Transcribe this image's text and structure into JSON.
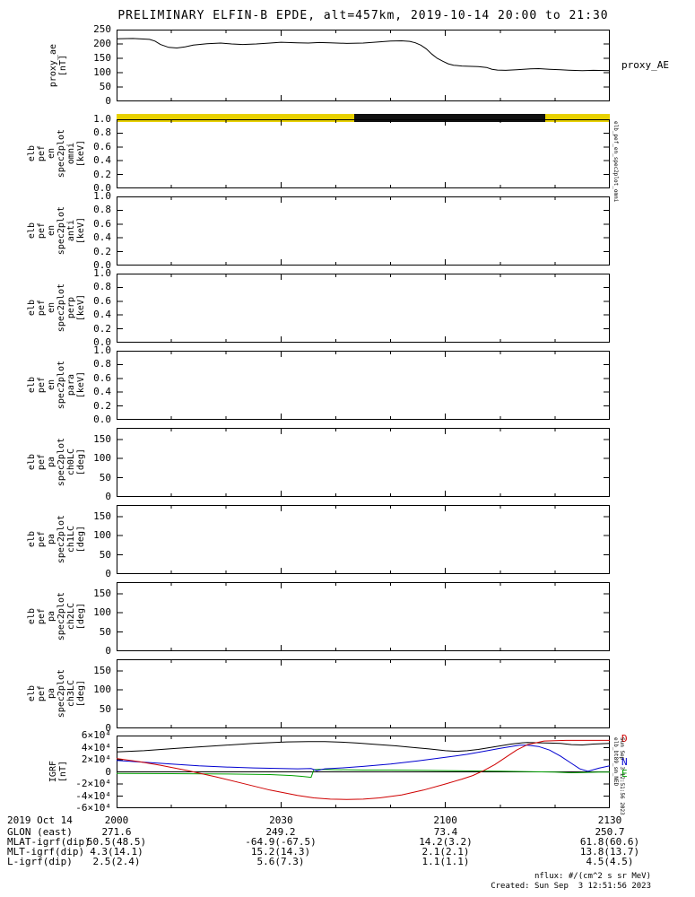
{
  "title": "PRELIMINARY ELFIN-B EPDE, alt=457km, 2019-10-14 20:00 to 21:30",
  "colors": {
    "line_black": "#000000",
    "line_red": "#cf0000",
    "line_blue": "#0000d0",
    "line_green": "#00a000",
    "bar_yellow": "#e8d100",
    "bar_black": "#111111"
  },
  "x_axis": {
    "range_minutes": [
      0,
      90
    ],
    "minor_every_min": 10,
    "ticks": [
      {
        "min": 0,
        "label": "2000"
      },
      {
        "min": 30,
        "label": "2030"
      },
      {
        "min": 60,
        "label": "2100"
      },
      {
        "min": 90,
        "label": "2130"
      }
    ]
  },
  "footer": {
    "date_label": "2019 Oct 14",
    "rows": [
      {
        "label": "GLON (east)",
        "values": [
          "271.6",
          "249.2",
          "73.4",
          "250.7"
        ]
      },
      {
        "label": "MLAT-igrf(dip)",
        "values": [
          "50.5(48.5)",
          "-64.9(-67.5)",
          "14.2(3.2)",
          "61.8(60.6)"
        ]
      },
      {
        "label": "MLT-igrf(dip)",
        "values": [
          "4.3(14.1)",
          "15.2(14.3)",
          "2.1(2.1)",
          "13.8(13.7)"
        ]
      },
      {
        "label": "L-igrf(dip)",
        "values": [
          "2.5(2.4)",
          "5.6(7.3)",
          "1.1(1.1)",
          "4.5(4.5)"
        ]
      }
    ],
    "units_note": "nflux: #/(cm^2 s sr MeV)",
    "created": "Created: Sun Sep  3 12:51:56 2023"
  },
  "chart_data": [
    {
      "name": "proxy_ae",
      "type": "line",
      "ylabel_lines": [
        "proxy_ae",
        "[nT]"
      ],
      "ylim": [
        0,
        250
      ],
      "yticks": [
        {
          "v": 0,
          "label": "0"
        },
        {
          "v": 50,
          "label": "50"
        },
        {
          "v": 100,
          "label": "100"
        },
        {
          "v": 150,
          "label": "150"
        },
        {
          "v": 200,
          "label": "200"
        },
        {
          "v": 250,
          "label": "250"
        }
      ],
      "right_labels": [
        {
          "text": "proxy_AE",
          "color": "#000000"
        }
      ],
      "series": [
        {
          "name": "proxy_AE",
          "color": "#000000",
          "x": [
            0,
            3,
            6,
            7,
            8,
            9.5,
            11,
            12.5,
            14,
            16.5,
            19,
            21,
            23,
            25.5,
            28,
            30,
            33,
            35,
            37,
            39,
            42,
            45,
            47,
            50,
            52,
            53.5,
            54.5,
            55.5,
            56.5,
            57.5,
            58.5,
            59.5,
            60.5,
            61.5,
            63,
            66,
            67.5,
            68.5,
            69.5,
            71,
            73,
            75.5,
            77,
            79,
            81,
            83,
            85,
            87,
            90
          ],
          "y": [
            218,
            219,
            216,
            210,
            198,
            188,
            186,
            190,
            196,
            201,
            203,
            200,
            198,
            200,
            203,
            206,
            204,
            203,
            205,
            204,
            202,
            203,
            206,
            210,
            211,
            209,
            204,
            196,
            183,
            165,
            150,
            140,
            131,
            126,
            123,
            121,
            118,
            112,
            109,
            108,
            110,
            113,
            114,
            112,
            110,
            108,
            107,
            108,
            107
          ]
        }
      ]
    },
    {
      "name": "sun-eclipse-bar",
      "type": "segments",
      "segments": [
        {
          "x0": 0,
          "x1": 43.4,
          "color": "#e8d100"
        },
        {
          "x0": 43.4,
          "x1": 78.2,
          "color": "#111111"
        },
        {
          "x0": 78.2,
          "x1": 90,
          "color": "#e8d100"
        }
      ]
    },
    {
      "name": "en-spec-omni",
      "type": "empty",
      "ylabel_lines": [
        "elb",
        "pef",
        "en",
        "spec2plot",
        "omni",
        "[keV]"
      ],
      "ylim": [
        0,
        1
      ],
      "yticks": [
        {
          "v": 0,
          "label": "0.0"
        },
        {
          "v": 0.2,
          "label": "0.2"
        },
        {
          "v": 0.4,
          "label": "0.4"
        },
        {
          "v": 0.6,
          "label": "0.6"
        },
        {
          "v": 0.8,
          "label": "0.8"
        },
        {
          "v": 1.0,
          "label": "1.0"
        }
      ],
      "right_vertical_labels": [
        "elb_pef_en_spec2plot_omni"
      ]
    },
    {
      "name": "en-spec-anti",
      "type": "empty",
      "ylabel_lines": [
        "elb",
        "pef",
        "en",
        "spec2plot",
        "anti",
        "[keV]"
      ],
      "ylim": [
        0,
        1
      ],
      "yticks": [
        {
          "v": 0,
          "label": "0.0"
        },
        {
          "v": 0.2,
          "label": "0.2"
        },
        {
          "v": 0.4,
          "label": "0.4"
        },
        {
          "v": 0.6,
          "label": "0.6"
        },
        {
          "v": 0.8,
          "label": "0.8"
        },
        {
          "v": 1.0,
          "label": "1.0"
        }
      ]
    },
    {
      "name": "en-spec-perp",
      "type": "empty",
      "ylabel_lines": [
        "elb",
        "pef",
        "en",
        "spec2plot",
        "perp",
        "[keV]"
      ],
      "ylim": [
        0,
        1
      ],
      "yticks": [
        {
          "v": 0,
          "label": "0.0"
        },
        {
          "v": 0.2,
          "label": "0.2"
        },
        {
          "v": 0.4,
          "label": "0.4"
        },
        {
          "v": 0.6,
          "label": "0.6"
        },
        {
          "v": 0.8,
          "label": "0.8"
        },
        {
          "v": 1.0,
          "label": "1.0"
        }
      ]
    },
    {
      "name": "en-spec-para",
      "type": "empty",
      "ylabel_lines": [
        "elb",
        "pef",
        "en",
        "spec2plot",
        "para",
        "[keV]"
      ],
      "ylim": [
        0,
        1
      ],
      "yticks": [
        {
          "v": 0,
          "label": "0.0"
        },
        {
          "v": 0.2,
          "label": "0.2"
        },
        {
          "v": 0.4,
          "label": "0.4"
        },
        {
          "v": 0.6,
          "label": "0.6"
        },
        {
          "v": 0.8,
          "label": "0.8"
        },
        {
          "v": 1.0,
          "label": "1.0"
        }
      ]
    },
    {
      "name": "pa-spec-ch0LC",
      "type": "empty",
      "ylabel_lines": [
        "elb",
        "pef",
        "pa",
        "spec2plot",
        "ch0LC",
        "[deg]"
      ],
      "ylim": [
        0,
        180
      ],
      "yticks": [
        {
          "v": 0,
          "label": "0"
        },
        {
          "v": 50,
          "label": "50"
        },
        {
          "v": 100,
          "label": "100"
        },
        {
          "v": 150,
          "label": "150"
        }
      ]
    },
    {
      "name": "pa-spec-ch1LC",
      "type": "empty",
      "ylabel_lines": [
        "elb",
        "pef",
        "pa",
        "spec2plot",
        "ch1LC",
        "[deg]"
      ],
      "ylim": [
        0,
        180
      ],
      "yticks": [
        {
          "v": 0,
          "label": "0"
        },
        {
          "v": 50,
          "label": "50"
        },
        {
          "v": 100,
          "label": "100"
        },
        {
          "v": 150,
          "label": "150"
        }
      ]
    },
    {
      "name": "pa-spec-ch2LC",
      "type": "empty",
      "ylabel_lines": [
        "elb",
        "pef",
        "pa",
        "spec2plot",
        "ch2LC",
        "[deg]"
      ],
      "ylim": [
        0,
        180
      ],
      "yticks": [
        {
          "v": 0,
          "label": "0"
        },
        {
          "v": 50,
          "label": "50"
        },
        {
          "v": 100,
          "label": "100"
        },
        {
          "v": 150,
          "label": "150"
        }
      ]
    },
    {
      "name": "pa-spec-ch3LC",
      "type": "empty",
      "ylabel_lines": [
        "elb",
        "pef",
        "pa",
        "spec2plot",
        "ch3LC",
        "[deg]"
      ],
      "ylim": [
        0,
        180
      ],
      "yticks": [
        {
          "v": 0,
          "label": "0"
        },
        {
          "v": 50,
          "label": "50"
        },
        {
          "v": 100,
          "label": "100"
        },
        {
          "v": 150,
          "label": "150"
        }
      ]
    },
    {
      "name": "igrf",
      "type": "line",
      "ylabel_lines": [
        "IGRF",
        "[nT]"
      ],
      "ylim": [
        -60000,
        60000
      ],
      "zero_line": true,
      "yticks": [
        {
          "v": -60000,
          "label": "-6×10⁴"
        },
        {
          "v": -40000,
          "label": "-4×10⁴"
        },
        {
          "v": -20000,
          "label": "-2×10⁴"
        },
        {
          "v": 0,
          "label": "0"
        },
        {
          "v": 20000,
          "label": "2×10⁴"
        },
        {
          "v": 40000,
          "label": "4×10⁴"
        },
        {
          "v": 60000,
          "label": "6×10⁴"
        }
      ],
      "right_labels": [
        {
          "text": "D",
          "color": "#cf0000",
          "v": 54000
        },
        {
          "text": "N",
          "color": "#0000d0",
          "v": 16000
        },
        {
          "text": "E",
          "color": "#00a000",
          "v": -4000
        }
      ],
      "right_vertical_labels": [
        "elb_bt89_sm_NED",
        "Sun Sep  3 12:51:56 2023"
      ],
      "series": [
        {
          "name": "B-black",
          "color": "#000000",
          "x": [
            0,
            5,
            11,
            18,
            25,
            31,
            35,
            38,
            41,
            44,
            47,
            51,
            54,
            57,
            60,
            62,
            64,
            66,
            68,
            70,
            72,
            74,
            75,
            77,
            79,
            81,
            83,
            85,
            87,
            90
          ],
          "y": [
            33000,
            35000,
            39000,
            43000,
            47000,
            49500,
            50000,
            50000,
            49000,
            47500,
            45500,
            43000,
            40500,
            38000,
            35000,
            34000,
            35000,
            37000,
            40000,
            43000,
            46000,
            48000,
            48500,
            48000,
            47500,
            47000,
            45000,
            44500,
            46000,
            47000
          ]
        },
        {
          "name": "E-green",
          "color": "#00a000",
          "x": [
            0,
            10,
            20,
            28,
            32,
            34,
            35.5,
            36,
            37,
            40,
            45,
            50,
            55,
            60,
            65,
            70,
            75,
            80,
            83,
            85,
            88,
            90
          ],
          "y": [
            -2500,
            -3000,
            -3500,
            -4500,
            -6000,
            -7500,
            -9000,
            3500,
            4000,
            3500,
            3000,
            3000,
            2500,
            2000,
            1500,
            1000,
            500,
            -500,
            -1500,
            -1000,
            -500,
            -500
          ]
        },
        {
          "name": "N-blue",
          "color": "#0000d0",
          "x": [
            0,
            5,
            10,
            15,
            20,
            25,
            30,
            33,
            35.5,
            36.5,
            38,
            41,
            45,
            50,
            55,
            60,
            64,
            67,
            70,
            72,
            73.5,
            75,
            77,
            79,
            81,
            83,
            84.5,
            86,
            88,
            90
          ],
          "y": [
            19000,
            16000,
            13000,
            10000,
            8000,
            6500,
            5500,
            5000,
            5500,
            2000,
            5000,
            6500,
            9000,
            13000,
            18000,
            24000,
            29000,
            34000,
            39000,
            42000,
            44000,
            44000,
            42000,
            36000,
            26000,
            14000,
            5000,
            1000,
            6000,
            10000
          ]
        },
        {
          "name": "D-red",
          "color": "#cf0000",
          "x": [
            0,
            4,
            8,
            13,
            18,
            23,
            28,
            33,
            36,
            39,
            42,
            45,
            48,
            52,
            56,
            60,
            63,
            65,
            67,
            69,
            71,
            73,
            75,
            78,
            82,
            86,
            90
          ],
          "y": [
            22000,
            17000,
            11000,
            2000,
            -8000,
            -19000,
            -30000,
            -39000,
            -43000,
            -45000,
            -45500,
            -45000,
            -43000,
            -38000,
            -30000,
            -20000,
            -12000,
            -6000,
            2000,
            12000,
            24000,
            36000,
            45000,
            51000,
            52000,
            52000,
            52000
          ]
        }
      ]
    }
  ]
}
